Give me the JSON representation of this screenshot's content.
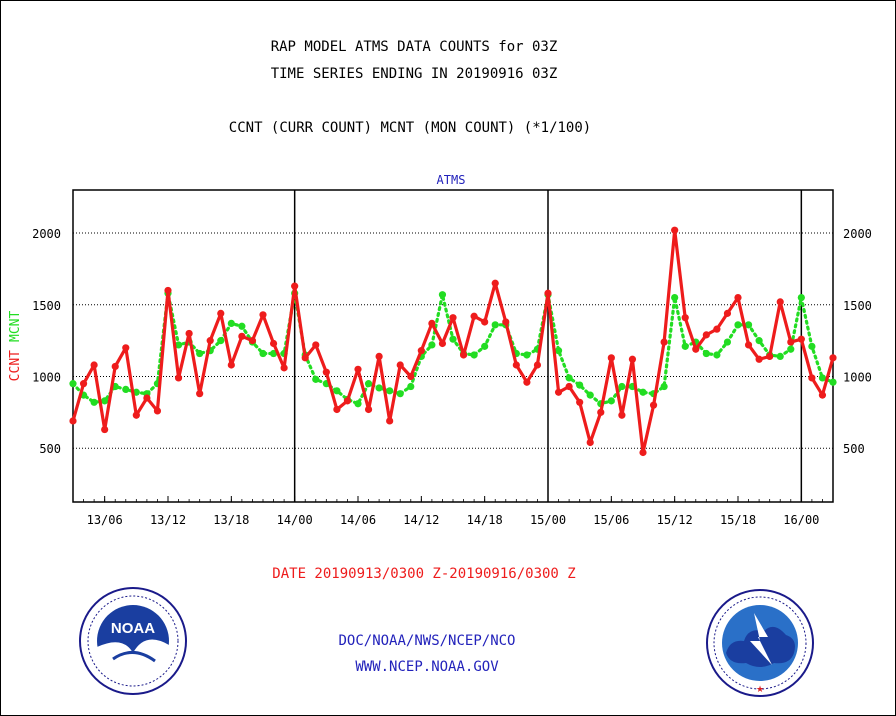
{
  "title_lines": [
    "RAP MODEL ATMS DATA COUNTS for 03Z",
    "TIME SERIES ENDING IN 20190916 03Z"
  ],
  "subtitle": "CCNT (CURR COUNT) MCNT (MON COUNT) (*1/100)",
  "panel_label": "ATMS",
  "ylabel_parts": [
    "CCNT",
    "MCNT"
  ],
  "date_range": "DATE 20190913/0300 Z-20190916/0300 Z",
  "footer_lines": [
    "DOC/NOAA/NWS/NCEP/NCO",
    "WWW.NCEP.NOAA.GOV"
  ],
  "logos": {
    "left": {
      "name": "noaa-logo",
      "center_text": "NOAA",
      "ring_text": "NATIONAL OCEANIC AND ATMOSPHERIC ADMINISTRATION · U.S. DEPARTMENT OF COMMERCE"
    },
    "right": {
      "name": "nws-logo",
      "ring_text": "NATIONAL WEATHER SERVICE"
    }
  },
  "colors": {
    "ccnt": "#ee1c1c",
    "mcnt": "#22dd22",
    "title": "#000000",
    "date": "#ee1c1c",
    "footer": "#2222bb",
    "panel_label": "#2222bb"
  },
  "chart_data": {
    "type": "line",
    "x_unit": "hour index from 2019-09-13 03Z (hourly)",
    "x_range": [
      0,
      72
    ],
    "ylim": [
      125,
      2300
    ],
    "yticks": [
      500,
      1000,
      1500,
      2000
    ],
    "xtick_labels": [
      "13/06",
      "13/12",
      "13/18",
      "14/00",
      "14/06",
      "14/12",
      "14/18",
      "15/00",
      "15/06",
      "15/12",
      "15/18",
      "16/00"
    ],
    "xtick_hours": [
      3,
      9,
      15,
      21,
      27,
      33,
      39,
      45,
      51,
      57,
      63,
      69
    ],
    "day_boundaries_hours": [
      21,
      45,
      69
    ],
    "grid": "horizontal dotted at y ticks",
    "series": [
      {
        "name": "CCNT",
        "style": "solid",
        "values": [
          690,
          950,
          1080,
          630,
          1070,
          1200,
          730,
          850,
          760,
          1600,
          990,
          1300,
          880,
          1250,
          1440,
          1080,
          1280,
          1250,
          1430,
          1230,
          1060,
          1630,
          1130,
          1220,
          1030,
          770,
          830,
          1050,
          770,
          1140,
          690,
          1080,
          1000,
          1180,
          1370,
          1230,
          1410,
          1150,
          1420,
          1380,
          1650,
          1380,
          1080,
          960,
          1080,
          1580,
          890,
          930,
          820,
          540,
          750,
          1130,
          730,
          1120,
          470,
          800,
          1240,
          2020,
          1410,
          1190,
          1290,
          1330,
          1440,
          1550,
          1220,
          1120,
          1140,
          1520,
          1240,
          1260,
          990,
          870,
          1130
        ]
      },
      {
        "name": "MCNT",
        "style": "dotted",
        "values": [
          950,
          870,
          820,
          830,
          930,
          910,
          890,
          880,
          950,
          1580,
          1220,
          1240,
          1160,
          1180,
          1250,
          1370,
          1350,
          1240,
          1160,
          1160,
          1160,
          1580,
          1150,
          980,
          950,
          900,
          840,
          810,
          950,
          920,
          900,
          880,
          930,
          1140,
          1220,
          1570,
          1260,
          1160,
          1150,
          1210,
          1360,
          1360,
          1160,
          1150,
          1190,
          1570,
          1180,
          990,
          940,
          870,
          810,
          830,
          930,
          930,
          890,
          880,
          930,
          1550,
          1210,
          1240,
          1160,
          1150,
          1240,
          1360,
          1360,
          1250,
          1150,
          1140,
          1190,
          1550,
          1210,
          990,
          960
        ]
      }
    ]
  }
}
